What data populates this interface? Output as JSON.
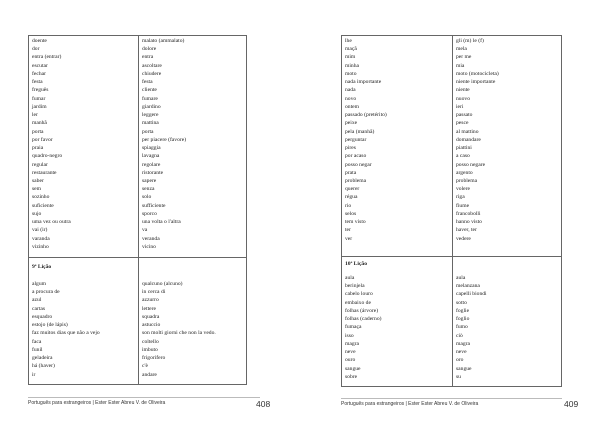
{
  "left_page": {
    "section1": {
      "pt": [
        "doente",
        "dor",
        "entra (entrar)",
        "escutar",
        "fechar",
        "festa",
        "freguês",
        "fumar",
        "jardim",
        "ler",
        "manhã",
        "porta",
        "por favor",
        "praia",
        "quadro-negro",
        "regular",
        "restaurante",
        "saber",
        "sem",
        "sozinho",
        "suficiente",
        "sujo",
        "uma vez ou outra",
        "vai (ir)",
        "varanda",
        "vizinho"
      ],
      "it": [
        "malato (ammalato)",
        "dolore",
        "entra",
        "ascoltare",
        "chiudere",
        "festa",
        "cliente",
        "fumare",
        "giardino",
        "leggere",
        "mattina",
        "porta",
        "per piacere (favore)",
        "spiaggia",
        "lavagna",
        "regolare",
        "ristorante",
        "sapere",
        "senza",
        "solo",
        "sufficiente",
        "sporco",
        "una volta o l'altra",
        "va",
        "veranda",
        "vicino"
      ]
    },
    "section2": {
      "heading": "9ª Lição",
      "pt": [
        "algum",
        "a procura de",
        "azul",
        "cartas",
        "esquadro",
        "estojo (de lápis)",
        "faz muitos dias que não a vejo",
        "faca",
        "funil",
        "geladeira",
        "há (haver)",
        "ir"
      ],
      "it": [
        "qualcuno (alcuno)",
        "in cerca di",
        "azzurro",
        "lettere",
        "squadra",
        "astuccio",
        "son molti giorni che non la vedo.",
        "coltello",
        "imbuto",
        "frigorifero",
        "c'è",
        "andare"
      ]
    },
    "footer": "Português para estrangeiros | Ester Ester Abreu V. de Oliveira",
    "page_number": "408"
  },
  "right_page": {
    "section1": {
      "pt": [
        "lhe",
        "maçã",
        "mim",
        "minha",
        "moto",
        "nada importante",
        "nada",
        "novo",
        "ontem",
        "passado (pretérito)",
        "peixe",
        "pela (manhã)",
        "perguntar",
        "pires",
        "por acaso",
        "posso negar",
        "prata",
        "problema",
        "querer",
        "régua",
        "rio",
        "selos",
        "tem visto",
        "ter",
        "ver"
      ],
      "it": [
        "gli (m) le (f)",
        "mela",
        "per me",
        "mia",
        "moto (motocicleta)",
        "niente importante",
        "niente",
        "nuovo",
        "ieri",
        "passato",
        "pesce",
        "al mattino",
        "domandare",
        "piattini",
        "a caso",
        "posso negare",
        "argento",
        "problema",
        "volere",
        "riga",
        "fiume",
        "francobolli",
        "hanno visto",
        "haver, ter",
        "vedere"
      ]
    },
    "section2": {
      "heading": "10ª Lição",
      "pt": [
        "aula",
        "berinjela",
        "cabelo louro",
        "embaixo de",
        "folhas (árvore)",
        "folhas (caderno)",
        "fumaça",
        "isso",
        "magra",
        "neve",
        "ouro",
        "sangue",
        "sobre"
      ],
      "it": [
        "aula",
        "melanzana",
        "capelli biondi",
        "sotto",
        "foglie",
        "foglio",
        "fumo",
        "ciò",
        "magra",
        "neve",
        "oro",
        "sangue",
        "su"
      ]
    },
    "footer": "Português para estrangeiros | Ester Ester Abreu V. de Oliveira",
    "page_number": "409"
  }
}
